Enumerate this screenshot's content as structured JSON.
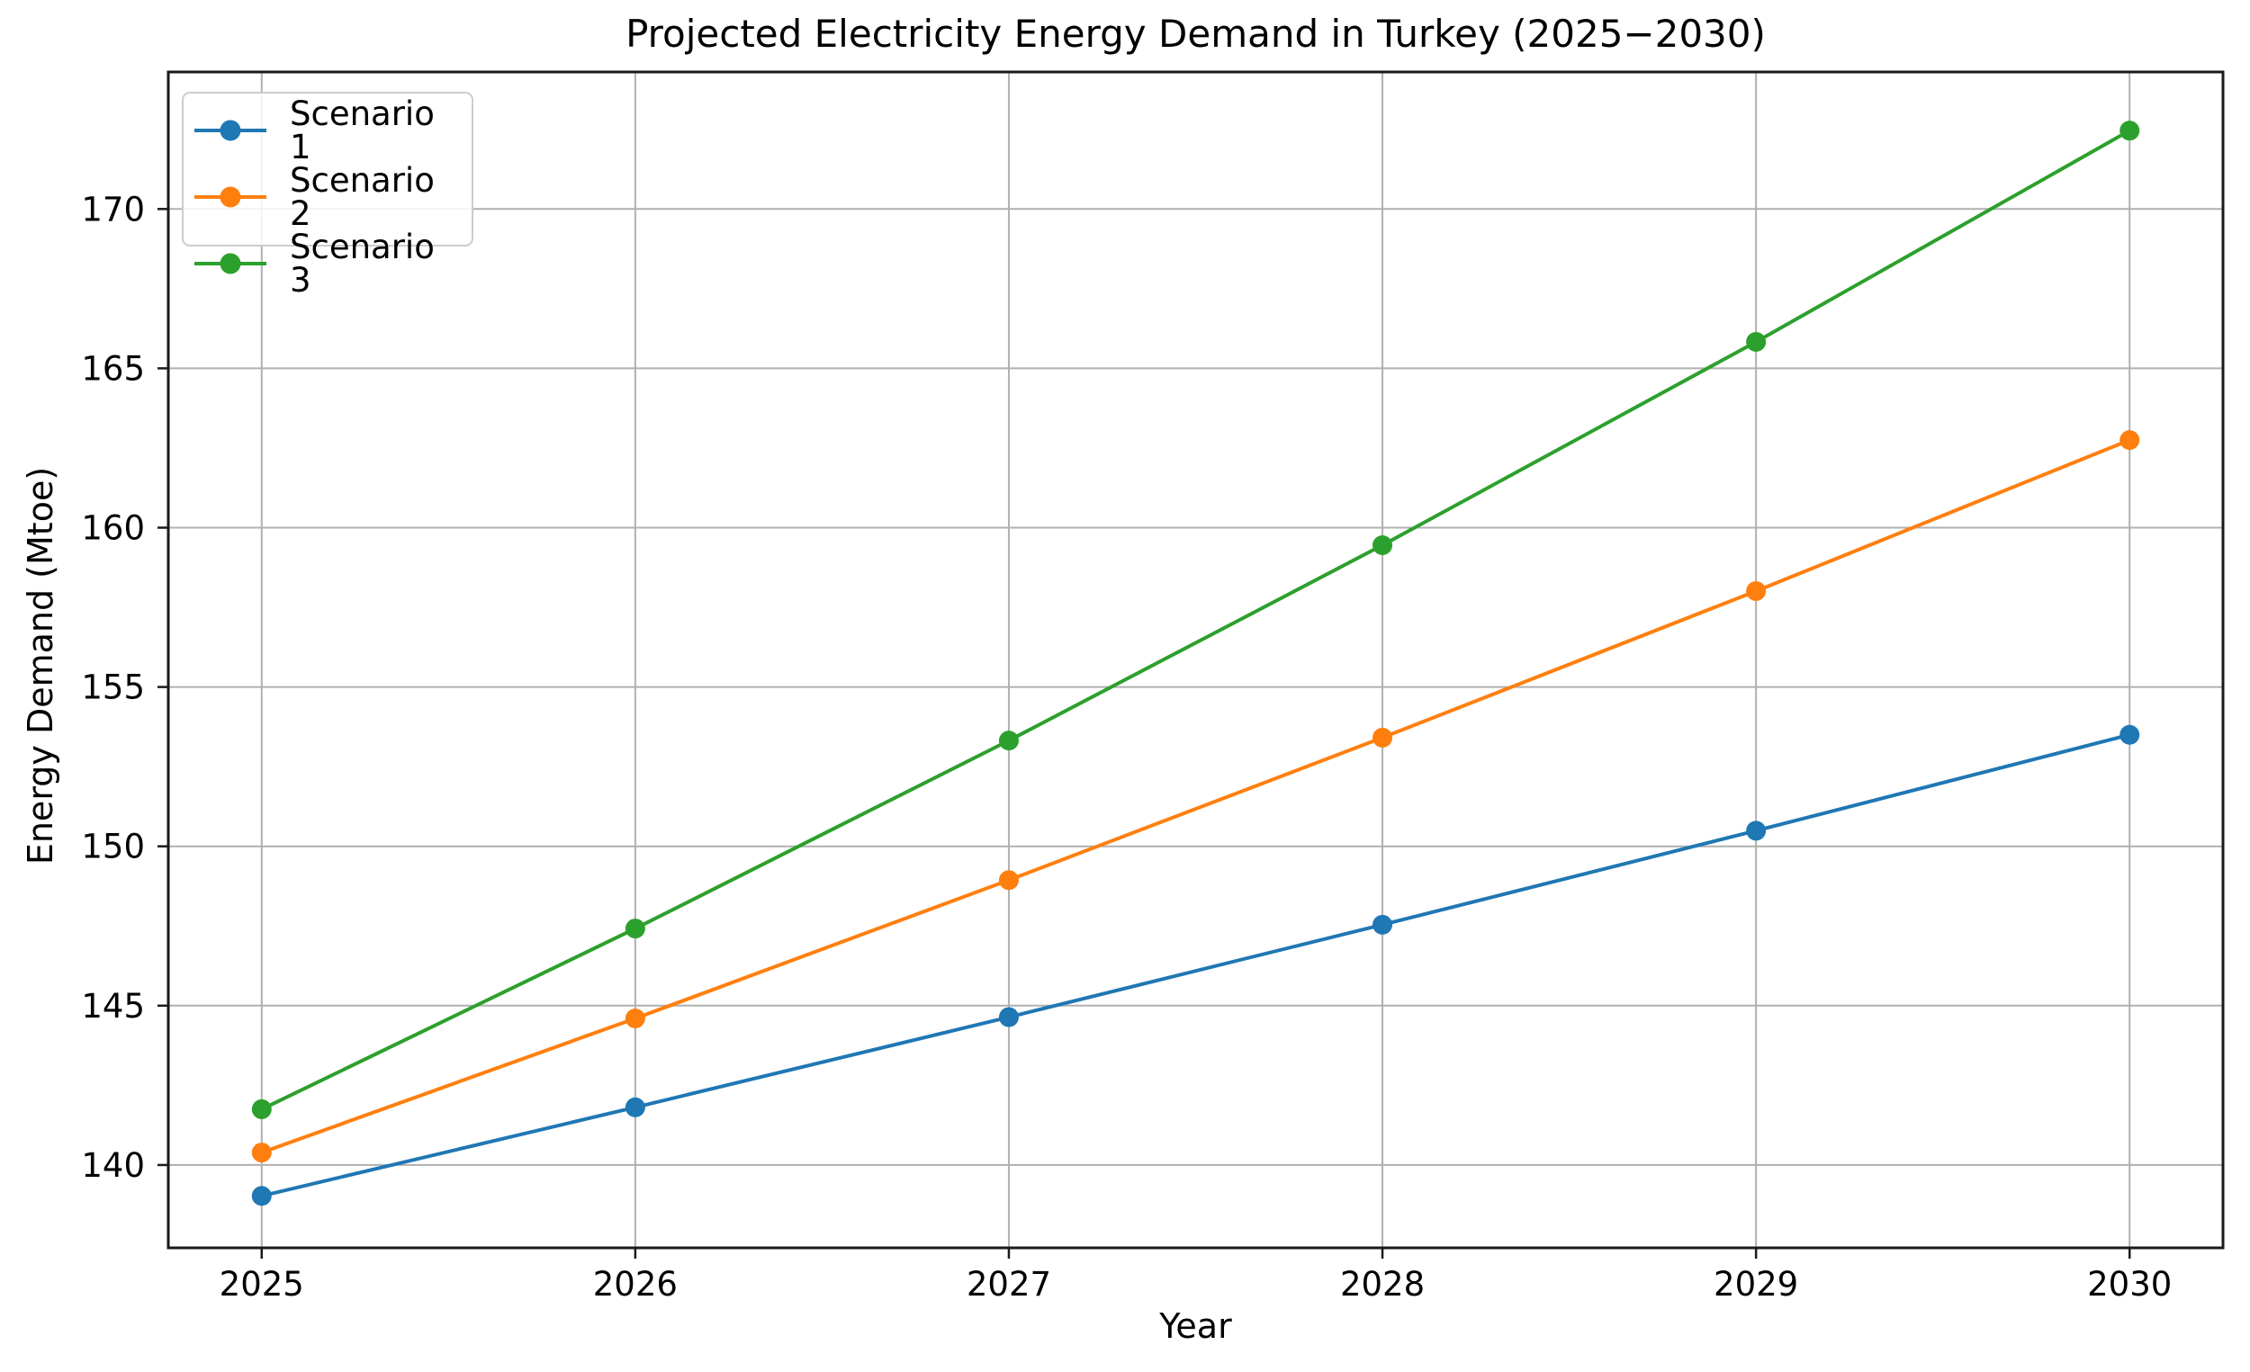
{
  "figure": {
    "background": "#ffffff"
  },
  "chart_data": {
    "type": "line",
    "title": "Projected Electricity Energy Demand in Turkey (2025−2030)",
    "xlabel": "Year",
    "ylabel": "Energy Demand (Mtoe)",
    "x": [
      2025,
      2026,
      2027,
      2028,
      2029,
      2030
    ],
    "series": [
      {
        "name": "Scenario 1",
        "color": "#1f77b4",
        "values": [
          139.03,
          141.81,
          144.64,
          147.54,
          150.49,
          153.5
        ]
      },
      {
        "name": "Scenario 2",
        "color": "#ff7f0e",
        "values": [
          140.39,
          144.6,
          148.94,
          153.41,
          158.01,
          162.75
        ]
      },
      {
        "name": "Scenario 3",
        "color": "#2ca02c",
        "values": [
          141.75,
          147.42,
          153.32,
          159.45,
          165.83,
          172.46
        ]
      }
    ],
    "xticks": [
      2025,
      2026,
      2027,
      2028,
      2029,
      2030
    ],
    "yticks": [
      140,
      145,
      150,
      155,
      160,
      165,
      170
    ],
    "xlim": [
      2024.75,
      2030.25
    ],
    "ylim": [
      137.4,
      174.3
    ],
    "grid": true,
    "legend_position": "upper-left",
    "marker": "circle",
    "grid_color": "#b0b0b0",
    "axis_color": "#1a1a1a",
    "text_color": "#000000"
  }
}
